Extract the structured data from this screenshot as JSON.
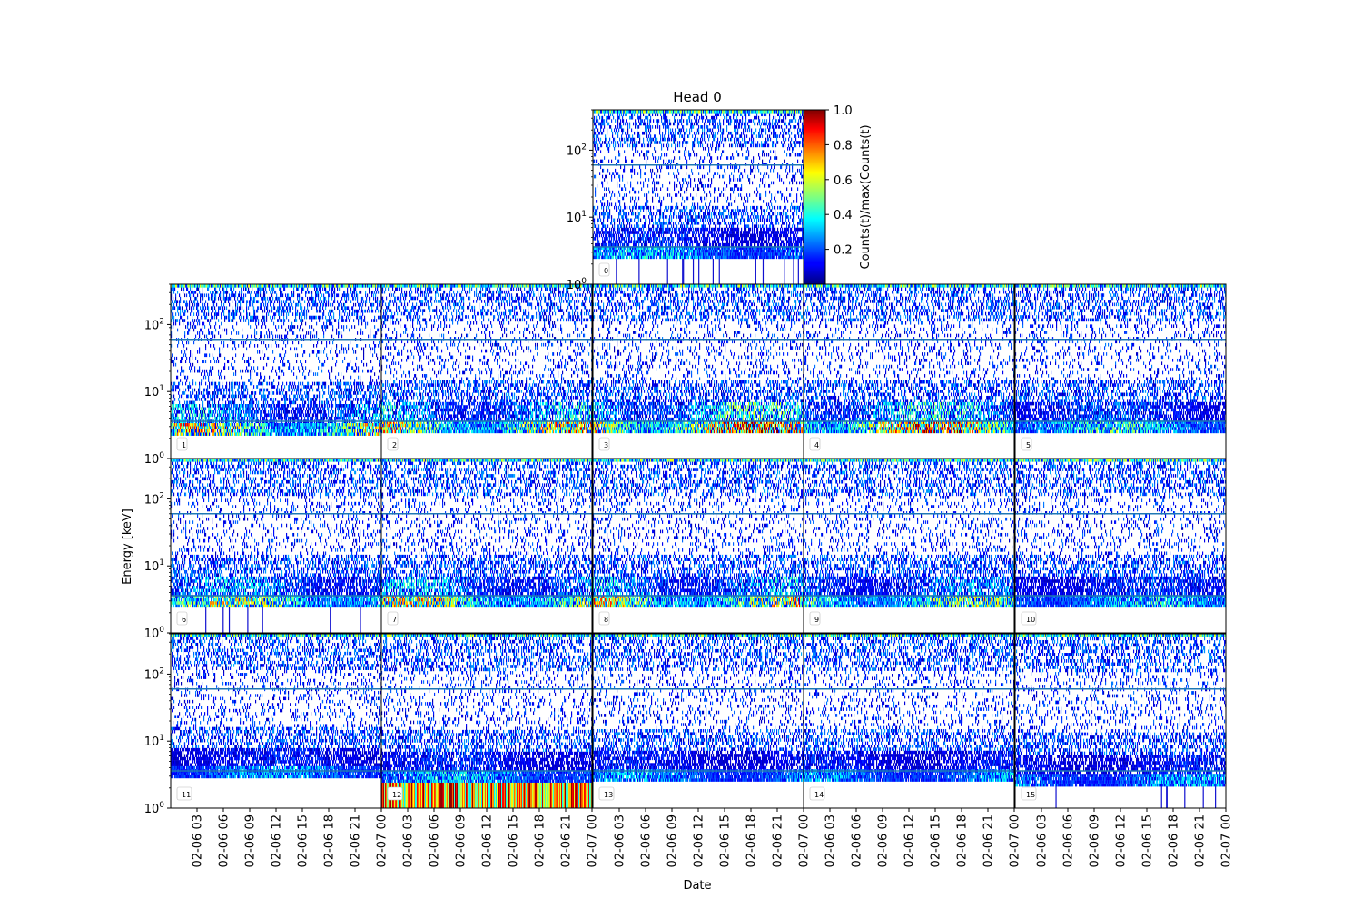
{
  "chart_data": {
    "type": "heatmap",
    "title": "Head 0",
    "xlabel": "Date",
    "ylabel": "Energy [keV]",
    "colorbar": {
      "label": "Counts(t)/max(Counts(t)",
      "ticks": [
        "0.2",
        "0.4",
        "0.6",
        "0.8",
        "1.0"
      ],
      "tick_values": [
        0.2,
        0.4,
        0.6,
        0.8,
        1.0
      ],
      "range": [
        0.0,
        1.0
      ],
      "colormap": "jet"
    },
    "y_scale": "log",
    "ylim": [
      1,
      400
    ],
    "y_ticks": [
      {
        "base": "10",
        "exp": "0",
        "value": 1
      },
      {
        "base": "10",
        "exp": "1",
        "value": 10
      },
      {
        "base": "10",
        "exp": "2",
        "value": 100
      }
    ],
    "x_ticks": [
      "02-06 03",
      "02-06 06",
      "02-06 09",
      "02-06 12",
      "02-06 15",
      "02-06 18",
      "02-06 21",
      "02-07 00"
    ],
    "x_tick_hours": [
      3,
      6,
      9,
      12,
      15,
      18,
      21,
      24
    ],
    "x_range_hours": [
      0,
      24
    ],
    "threshold_lines_keV": [
      60,
      3.6
    ],
    "panels": [
      {
        "label": "0",
        "max_intensity": 0.35,
        "low_cut_keV": 2.4
      },
      {
        "label": "1",
        "max_intensity": 0.75,
        "low_cut_keV": 2.2
      },
      {
        "label": "2",
        "max_intensity": 0.8,
        "low_cut_keV": 2.4
      },
      {
        "label": "3",
        "max_intensity": 1.0,
        "low_cut_keV": 2.4
      },
      {
        "label": "4",
        "max_intensity": 0.9,
        "low_cut_keV": 2.4
      },
      {
        "label": "5",
        "max_intensity": 0.45,
        "low_cut_keV": 2.4
      },
      {
        "label": "6",
        "max_intensity": 0.65,
        "low_cut_keV": 2.4
      },
      {
        "label": "7",
        "max_intensity": 0.7,
        "low_cut_keV": 2.4
      },
      {
        "label": "8",
        "max_intensity": 0.75,
        "low_cut_keV": 2.4
      },
      {
        "label": "9",
        "max_intensity": 0.6,
        "low_cut_keV": 2.4
      },
      {
        "label": "10",
        "max_intensity": 0.4,
        "low_cut_keV": 2.4
      },
      {
        "label": "11",
        "max_intensity": 0.3,
        "low_cut_keV": 2.8
      },
      {
        "label": "12",
        "max_intensity": 0.35,
        "low_cut_keV": 2.4,
        "bottom_band_intensity": 0.65
      },
      {
        "label": "13",
        "max_intensity": 0.3,
        "low_cut_keV": 2.5
      },
      {
        "label": "14",
        "max_intensity": 0.3,
        "low_cut_keV": 2.5
      },
      {
        "label": "15",
        "max_intensity": 0.3,
        "low_cut_keV": 2.1
      }
    ]
  }
}
